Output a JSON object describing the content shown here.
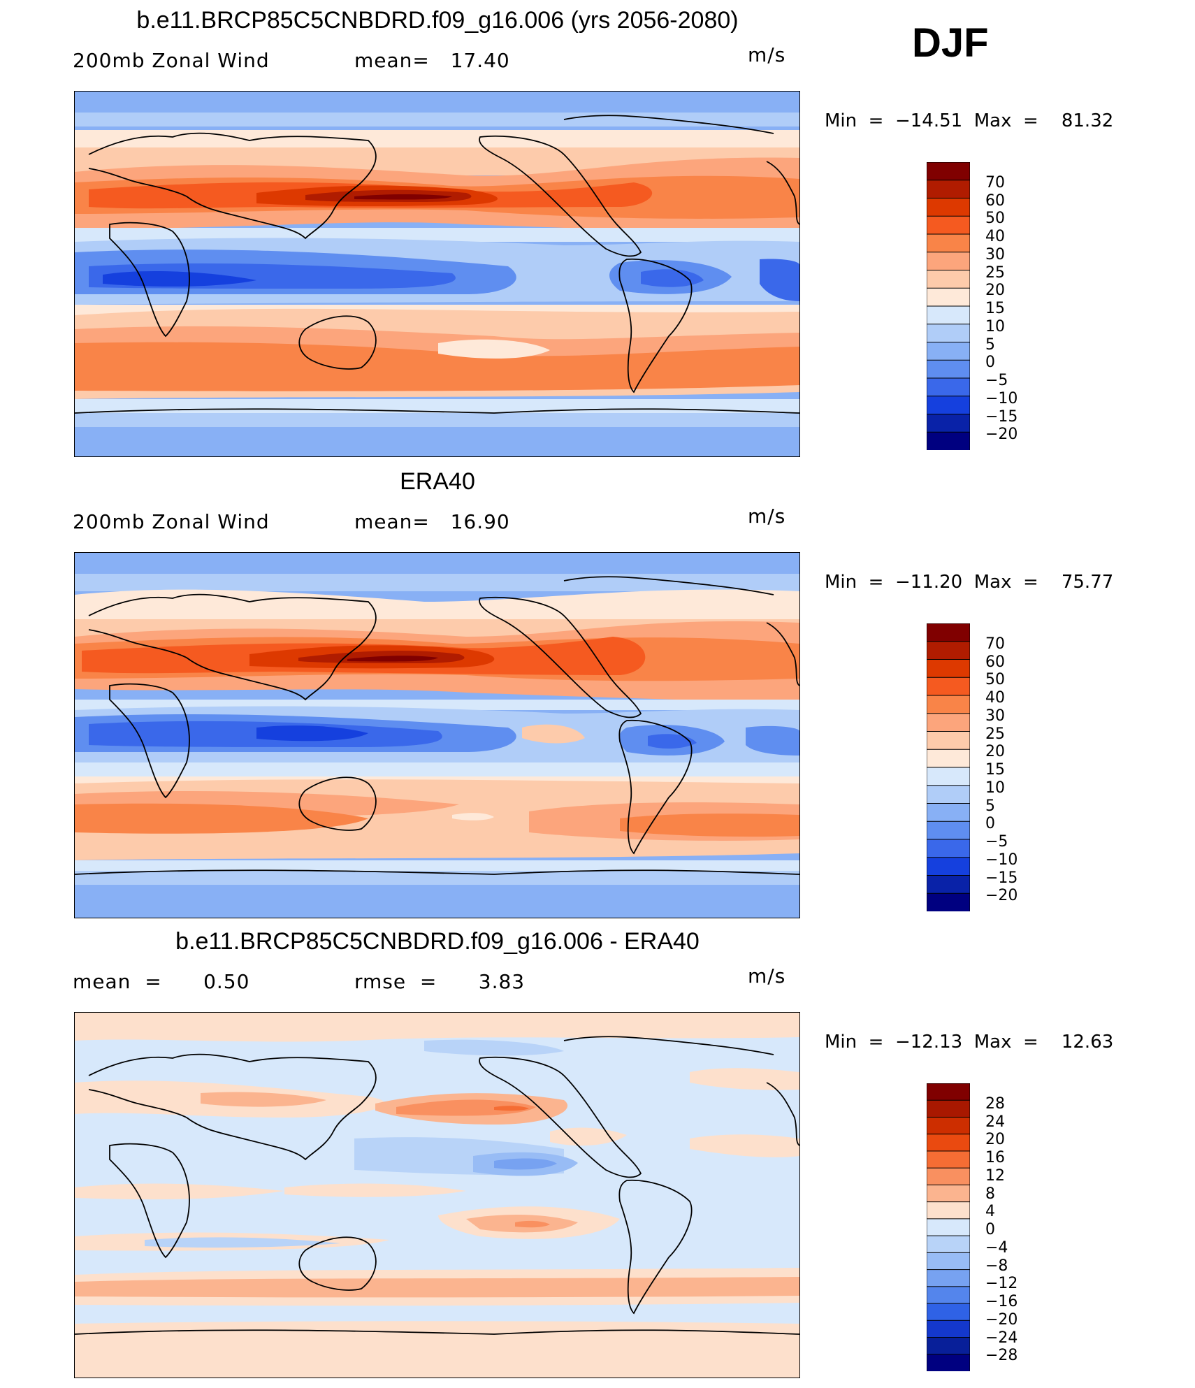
{
  "season": "DJF",
  "panels": [
    {
      "title": "b.e11.BRCP85C5CNBDRD.f09_g16.006 (yrs 2056-2080)",
      "left_label": "200mb Zonal Wind",
      "center_label": "mean=   17.40",
      "units": "m/s",
      "minmax": "Min  =  −14.51  Max  =    81.32",
      "colorbar_labels": [
        "70",
        "60",
        "50",
        "40",
        "30",
        "25",
        "20",
        "15",
        "10",
        "5",
        "0",
        "−5",
        "−10",
        "−15",
        "−20"
      ]
    },
    {
      "title": "ERA40",
      "left_label": "200mb Zonal Wind",
      "center_label": "mean=   16.90",
      "units": "m/s",
      "minmax": "Min  =  −11.20  Max  =    75.77",
      "colorbar_labels": [
        "70",
        "60",
        "50",
        "40",
        "30",
        "25",
        "20",
        "15",
        "10",
        "5",
        "0",
        "−5",
        "−10",
        "−15",
        "−20"
      ]
    },
    {
      "title": "b.e11.BRCP85C5CNBDRD.f09_g16.006 - ERA40",
      "left_label": "mean  =      0.50",
      "center_label": "rmse  =      3.83",
      "units": "m/s",
      "minmax": "Min  =  −12.13  Max  =    12.63",
      "colorbar_labels": [
        "28",
        "24",
        "20",
        "16",
        "12",
        "8",
        "4",
        "0",
        "−4",
        "−8",
        "−12",
        "−16",
        "−20",
        "−24",
        "−28"
      ]
    }
  ],
  "colors": {
    "wind_scale": [
      "#800000",
      "#b01c00",
      "#dd3900",
      "#f55a20",
      "#f98448",
      "#fca57c",
      "#fdcbab",
      "#fee9d9",
      "#d7e8fb",
      "#b0cdf8",
      "#88b0f5",
      "#5f8ef0",
      "#3a68ea",
      "#1540de",
      "#0922a8",
      "#000080"
    ],
    "diff_scale": [
      "#800000",
      "#a81800",
      "#cd2e00",
      "#ea4a10",
      "#f56d34",
      "#f99060",
      "#fbb48f",
      "#fde0cc",
      "#d7e8fb",
      "#b8d3f8",
      "#98bcf5",
      "#77a2f1",
      "#5485ec",
      "#2f62e6",
      "#1438cc",
      "#081f99",
      "#000080"
    ]
  }
}
